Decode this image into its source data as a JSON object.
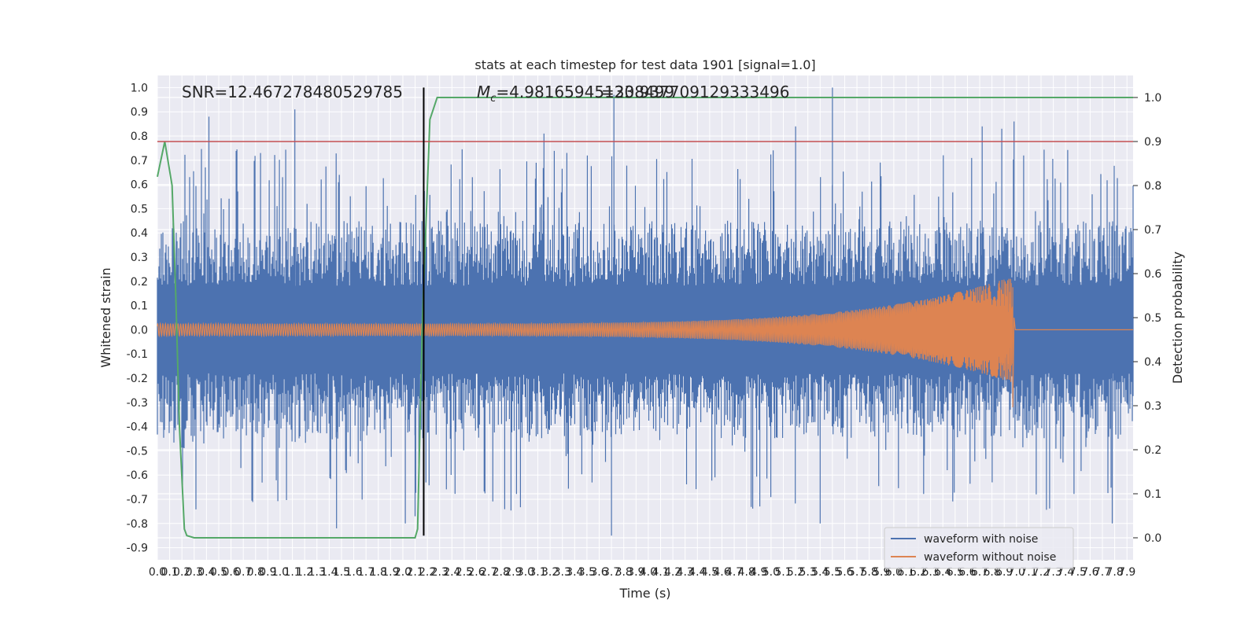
{
  "chart_data": {
    "type": "line",
    "title": "stats at each timestep for test data 1901 [signal=1.0]",
    "xlabel": "Time (s)",
    "ylabel_left": "Whitened strain",
    "ylabel_right": "Detection probability",
    "xlim": [
      0.0,
      7.95
    ],
    "ylim_left": [
      -0.95,
      1.05
    ],
    "ylim_right": [
      -0.05,
      1.05
    ],
    "x_ticks": [
      "0.0",
      "0.1",
      "0.2",
      "0.3",
      "0.4",
      "0.5",
      "0.6",
      "0.7",
      "0.8",
      "0.9",
      "1.0",
      "1.1",
      "1.2",
      "1.3",
      "1.4",
      "1.5",
      "1.6",
      "1.7",
      "1.8",
      "1.9",
      "2.0",
      "2.1",
      "2.2",
      "2.3",
      "2.4",
      "2.5",
      "2.6",
      "2.7",
      "2.8",
      "2.9",
      "3.0",
      "3.1",
      "3.2",
      "3.3",
      "3.4",
      "3.5",
      "3.6",
      "3.7",
      "3.8",
      "3.9",
      "4.0",
      "4.1",
      "4.2",
      "4.3",
      "4.4",
      "4.5",
      "4.6",
      "4.7",
      "4.8",
      "4.9",
      "5.0",
      "5.1",
      "5.2",
      "5.3",
      "5.4",
      "5.5",
      "5.6",
      "5.7",
      "5.8",
      "5.9",
      "6.0",
      "6.1",
      "6.2",
      "6.3",
      "6.4",
      "6.5",
      "6.6",
      "6.7",
      "6.8",
      "6.9",
      "7.0",
      "7.1",
      "7.2",
      "7.3",
      "7.4",
      "7.5",
      "7.6",
      "7.7",
      "7.8",
      "7.9"
    ],
    "y_ticks_left": [
      "1.0",
      "0.9",
      "0.8",
      "0.7",
      "0.6",
      "0.5",
      "0.4",
      "0.3",
      "0.2",
      "0.1",
      "0.0",
      "-0.1",
      "-0.2",
      "-0.3",
      "-0.4",
      "-0.5",
      "-0.6",
      "-0.7",
      "-0.8",
      "-0.9"
    ],
    "y_ticks_right": [
      "1.0",
      "0.9",
      "0.8",
      "0.7",
      "0.6",
      "0.5",
      "0.4",
      "0.3",
      "0.2",
      "0.1",
      "0.0"
    ],
    "annotations": {
      "snr": "SNR=12.467278480529785",
      "mc": "M",
      "mc_sub": "c",
      "mc_value": "=4.981659451238499",
      "mc_overlap": "=30.937709129333496"
    },
    "legend": {
      "location": "lower-right",
      "entries": [
        {
          "label": "waveform with noise",
          "color": "#4c72b0"
        },
        {
          "label": "waveform without noise",
          "color": "#dd8452"
        }
      ]
    },
    "series": [
      {
        "name": "waveform with noise",
        "axis": "left",
        "color": "#4c72b0",
        "kind": "noise",
        "x_range": [
          0.0,
          7.95
        ],
        "core_amplitude": 0.3,
        "burst_amplitude": 0.45,
        "peaks": [
          {
            "x": 0.42,
            "y": 0.88
          },
          {
            "x": 1.12,
            "y": 0.91
          },
          {
            "x": 3.72,
            "y": 0.97
          },
          {
            "x": 5.5,
            "y": 1.0
          },
          {
            "x": 6.98,
            "y": 0.86
          },
          {
            "x": 5.2,
            "y": 0.84
          },
          {
            "x": 6.72,
            "y": 0.84
          },
          {
            "x": 6.88,
            "y": 0.83
          },
          {
            "x": 3.15,
            "y": 0.81
          },
          {
            "x": 2.02,
            "y": -0.8
          },
          {
            "x": 3.7,
            "y": -0.85
          },
          {
            "x": 1.46,
            "y": -0.82
          },
          {
            "x": 5.4,
            "y": -0.8
          },
          {
            "x": 7.78,
            "y": -0.8
          },
          {
            "x": 2.1,
            "y": -0.77
          }
        ]
      },
      {
        "name": "waveform without noise",
        "axis": "left",
        "color": "#dd8452",
        "kind": "chirp",
        "x_range": [
          0.0,
          7.95
        ],
        "start_amplitude": 0.025,
        "peak_amplitude": 0.22,
        "merger_time": 6.97,
        "ringdown_min": -0.32,
        "post_merger_level": 0.0
      },
      {
        "name": "detection probability",
        "axis": "right",
        "color": "#55a868",
        "kind": "line",
        "x": [
          0.0,
          0.06,
          0.12,
          0.15,
          0.18,
          0.22,
          0.24,
          0.3,
          2.0,
          2.1,
          2.12,
          2.16,
          2.22,
          2.28,
          7.95
        ],
        "y": [
          0.82,
          0.9,
          0.8,
          0.55,
          0.25,
          0.02,
          0.005,
          0.0,
          0.0,
          0.0,
          0.02,
          0.5,
          0.95,
          1.0,
          1.0
        ]
      },
      {
        "name": "threshold",
        "axis": "right",
        "color": "#c44e52",
        "kind": "hline",
        "y": 0.9
      },
      {
        "name": "detection time",
        "axis": "left",
        "color": "#000000",
        "kind": "vline",
        "x": 2.17,
        "y_range": [
          -0.85,
          1.0
        ]
      }
    ]
  }
}
